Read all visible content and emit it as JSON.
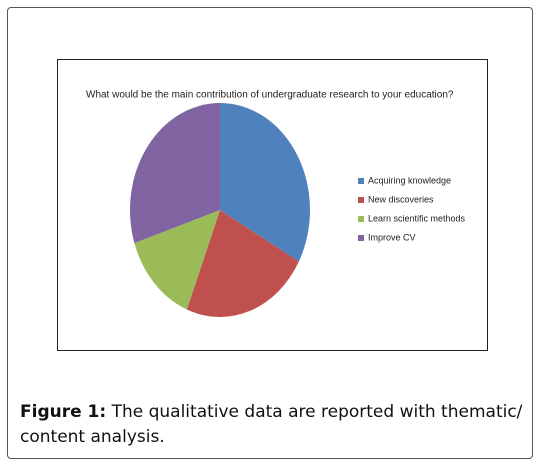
{
  "chart_data": {
    "type": "pie",
    "title": "What would be the main contribution of undergraduate research to your education?",
    "categories": [
      "Acquiring knowledge",
      "New discoveries",
      "Learn scientific methods",
      "Improve CV"
    ],
    "values": [
      33,
      23,
      14,
      30
    ],
    "colors": [
      "#4f81bd",
      "#c0504d",
      "#9bbb59",
      "#8064a2"
    ],
    "legend": "right"
  },
  "caption": {
    "label": "Figure 1:",
    "text": "The qualitative data are reported with thematic/ content analysis."
  }
}
